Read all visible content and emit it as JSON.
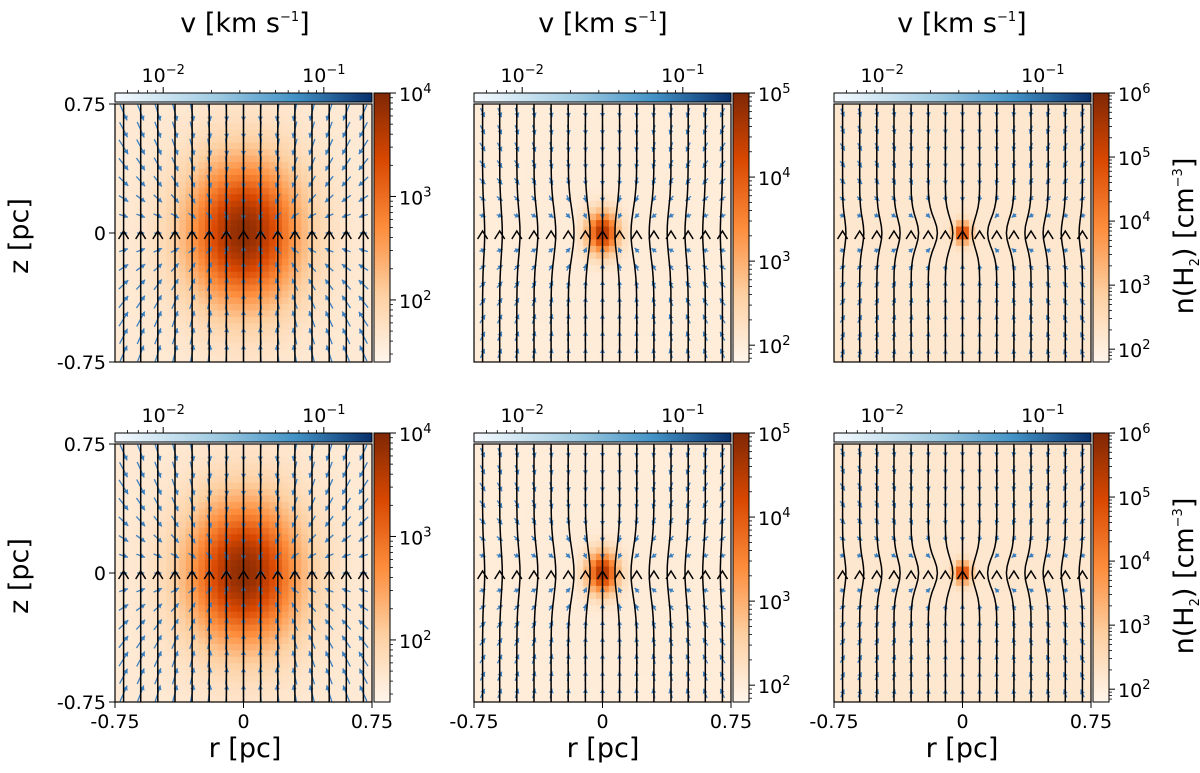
{
  "figure": {
    "title_top": "v [km s",
    "title_top_sup": "−1",
    "title_top_end": "]",
    "r_axis_label": "r [pc]",
    "z_axis_label": "z [pc]",
    "density_label": {
      "pre": "n(H",
      "sub": "2",
      "mid": ") [cm",
      "sup": "−3",
      "end": "]"
    },
    "r_ticks": [
      "-0.75",
      "0",
      "0.75"
    ],
    "z_ticks": [
      "0.75",
      "0",
      "-0.75"
    ],
    "v_ticks": [
      {
        "base": "10",
        "exp": "−2"
      },
      {
        "base": "10",
        "exp": "−1"
      }
    ]
  },
  "chart_data": [
    {
      "type": "heatmap",
      "row": 1,
      "col": 1,
      "x_range": [
        -0.75,
        0.75
      ],
      "y_range": [
        -0.75,
        0.75
      ],
      "density_log_range": [
        1.4,
        4
      ],
      "density_ticks": [
        {
          "base": "10",
          "exp": "4"
        },
        {
          "base": "10",
          "exp": "3"
        },
        {
          "base": "10",
          "exp": "2"
        }
      ],
      "velocity_ticks": [
        "10^-2",
        "10^-1"
      ],
      "core": {
        "peak_log": 3.9,
        "width_r": 0.32,
        "width_z": 0.42,
        "background_log": 1.6
      },
      "field_lines": {
        "count": 15,
        "pinch": 0.0,
        "direction": "up"
      },
      "velocity_arrows": {
        "strength": 1.0
      }
    },
    {
      "type": "heatmap",
      "row": 1,
      "col": 2,
      "x_range": [
        -0.75,
        0.75
      ],
      "y_range": [
        -0.75,
        0.75
      ],
      "density_log_range": [
        1.8,
        5
      ],
      "density_ticks": [
        {
          "base": "10",
          "exp": "5"
        },
        {
          "base": "10",
          "exp": "4"
        },
        {
          "base": "10",
          "exp": "3"
        },
        {
          "base": "10",
          "exp": "2"
        }
      ],
      "velocity_ticks": [
        "10^-2",
        "10^-1"
      ],
      "core": {
        "peak_log": 4.6,
        "width_r": 0.09,
        "width_z": 0.12,
        "background_log": 2.0
      },
      "field_lines": {
        "count": 15,
        "pinch": 0.05,
        "direction": "up"
      },
      "velocity_arrows": {
        "strength": 0.45
      }
    },
    {
      "type": "heatmap",
      "row": 1,
      "col": 3,
      "x_range": [
        -0.75,
        0.75
      ],
      "y_range": [
        -0.75,
        0.75
      ],
      "density_log_range": [
        1.8,
        6
      ],
      "density_ticks": [
        {
          "base": "10",
          "exp": "6"
        },
        {
          "base": "10",
          "exp": "5"
        },
        {
          "base": "10",
          "exp": "4"
        },
        {
          "base": "10",
          "exp": "3"
        },
        {
          "base": "10",
          "exp": "2"
        }
      ],
      "velocity_ticks": [
        "10^-2",
        "10^-1"
      ],
      "core": {
        "peak_log": 5.2,
        "width_r": 0.05,
        "width_z": 0.06,
        "background_log": 2.2
      },
      "field_lines": {
        "count": 15,
        "pinch": 0.08,
        "direction": "up"
      },
      "velocity_arrows": {
        "strength": 0.35
      }
    },
    {
      "type": "heatmap",
      "row": 2,
      "col": 1,
      "x_range": [
        -0.75,
        0.75
      ],
      "y_range": [
        -0.75,
        0.75
      ],
      "density_log_range": [
        1.4,
        4
      ],
      "density_ticks": [
        {
          "base": "10",
          "exp": "4"
        },
        {
          "base": "10",
          "exp": "3"
        },
        {
          "base": "10",
          "exp": "2"
        }
      ],
      "velocity_ticks": [
        "10^-2",
        "10^-1"
      ],
      "core": {
        "peak_log": 3.9,
        "width_r": 0.32,
        "width_z": 0.42,
        "background_log": 1.6
      },
      "field_lines": {
        "count": 15,
        "pinch": 0.0,
        "direction": "up"
      },
      "velocity_arrows": {
        "strength": 1.0
      }
    },
    {
      "type": "heatmap",
      "row": 2,
      "col": 2,
      "x_range": [
        -0.75,
        0.75
      ],
      "y_range": [
        -0.75,
        0.75
      ],
      "density_log_range": [
        1.8,
        5
      ],
      "density_ticks": [
        {
          "base": "10",
          "exp": "5"
        },
        {
          "base": "10",
          "exp": "4"
        },
        {
          "base": "10",
          "exp": "3"
        },
        {
          "base": "10",
          "exp": "2"
        }
      ],
      "velocity_ticks": [
        "10^-2",
        "10^-1"
      ],
      "core": {
        "peak_log": 4.6,
        "width_r": 0.09,
        "width_z": 0.12,
        "background_log": 2.0
      },
      "field_lines": {
        "count": 15,
        "pinch": 0.05,
        "direction": "up"
      },
      "velocity_arrows": {
        "strength": 0.45
      }
    },
    {
      "type": "heatmap",
      "row": 2,
      "col": 3,
      "x_range": [
        -0.75,
        0.75
      ],
      "y_range": [
        -0.75,
        0.75
      ],
      "density_log_range": [
        1.8,
        6
      ],
      "density_ticks": [
        {
          "base": "10",
          "exp": "6"
        },
        {
          "base": "10",
          "exp": "5"
        },
        {
          "base": "10",
          "exp": "4"
        },
        {
          "base": "10",
          "exp": "3"
        },
        {
          "base": "10",
          "exp": "2"
        }
      ],
      "velocity_ticks": [
        "10^-2",
        "10^-1"
      ],
      "core": {
        "peak_log": 5.2,
        "width_r": 0.05,
        "width_z": 0.06,
        "background_log": 2.2
      },
      "field_lines": {
        "count": 15,
        "pinch": 0.08,
        "direction": "up"
      },
      "velocity_arrows": {
        "strength": 0.35
      }
    }
  ],
  "colors": {
    "density_low": "#fff5eb",
    "density_mid": "#fd8d3c",
    "density_high": "#7f2704",
    "velocity_low": "#f7fbff",
    "velocity_high": "#08306b",
    "field_line": "#000000",
    "arrow": "#3a7fc0"
  }
}
